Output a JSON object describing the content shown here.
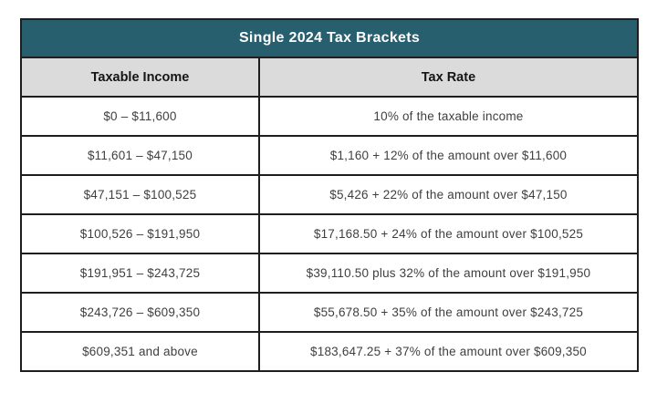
{
  "chart_data": {
    "type": "table",
    "title": "Single 2024 Tax Brackets",
    "columns": [
      "Taxable Income",
      "Tax Rate"
    ],
    "rows": [
      [
        "$0 – $11,600",
        "10% of the taxable income"
      ],
      [
        "$11,601 – $47,150",
        "$1,160 + 12% of the amount over $11,600"
      ],
      [
        "$47,151 – $100,525",
        "$5,426 + 22% of the amount over $47,150"
      ],
      [
        "$100,526 – $191,950",
        "$17,168.50 + 24% of the amount over $100,525"
      ],
      [
        "$191,951 – $243,725",
        "$39,110.50 plus 32% of the amount over $191,950"
      ],
      [
        "$243,726 – $609,350",
        "$55,678.50 + 35% of the amount over $243,725"
      ],
      [
        "$609,351 and above",
        "$183,647.25 + 37% of the amount over $609,350"
      ]
    ],
    "layout": {
      "legend": "none",
      "grid": "full-borders",
      "title_position": "top-banner"
    }
  },
  "colors": {
    "title_bg": "#275f6e",
    "title_text": "#ffffff",
    "header_bg": "#dbdbdb",
    "header_text": "#151515",
    "cell_text": "#3f3f3f",
    "border": "#1e1e1e",
    "row_bg": "#ffffff",
    "page_bg": "#ffffff"
  }
}
